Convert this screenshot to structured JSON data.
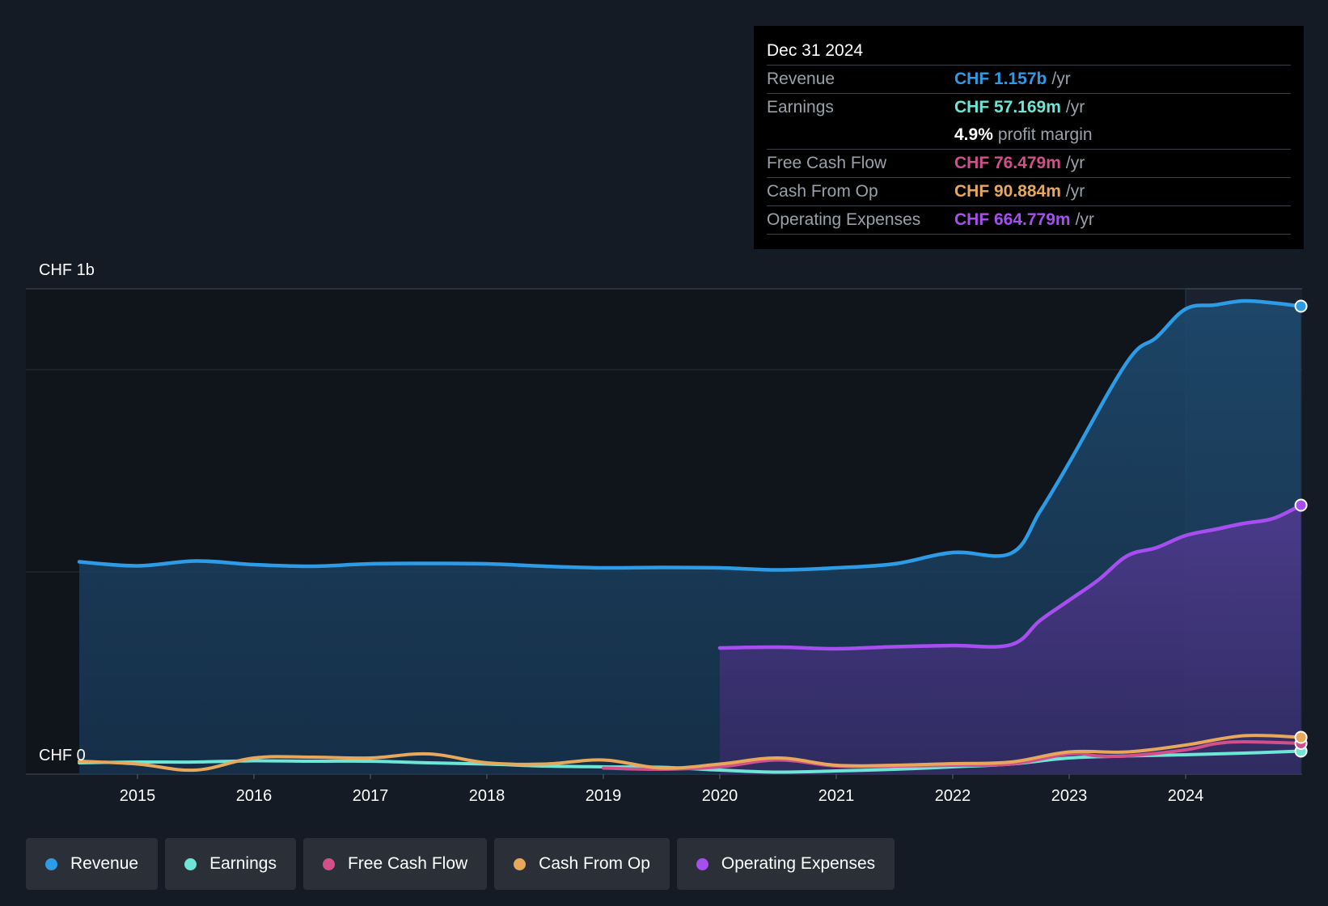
{
  "tooltip": {
    "date": "Dec 31 2024",
    "rows": [
      {
        "label": "Revenue",
        "value": "CHF 1.157b",
        "unit": "/yr",
        "color": "#2d9be6"
      },
      {
        "label": "Earnings",
        "value": "CHF 57.169m",
        "unit": "/yr",
        "color": "#6ee6d6"
      },
      {
        "label": "Free Cash Flow",
        "value": "CHF 76.479m",
        "unit": "/yr",
        "color": "#d14f8b"
      },
      {
        "label": "Cash From Op",
        "value": "CHF 90.884m",
        "unit": "/yr",
        "color": "#e8a85c"
      },
      {
        "label": "Operating Expenses",
        "value": "CHF 664.779m",
        "unit": "/yr",
        "color": "#a64ef0"
      }
    ],
    "margin": {
      "value": "4.9%",
      "label": "profit margin"
    }
  },
  "legend": [
    {
      "label": "Revenue",
      "color": "#2d9be6"
    },
    {
      "label": "Earnings",
      "color": "#6ee6d6"
    },
    {
      "label": "Free Cash Flow",
      "color": "#d14f8b"
    },
    {
      "label": "Cash From Op",
      "color": "#e8a85c"
    },
    {
      "label": "Operating Expenses",
      "color": "#a64ef0"
    }
  ],
  "chart_data": {
    "type": "area",
    "title": "",
    "ylabel_top": "CHF 1b",
    "ylabel_bottom": "CHF 0",
    "x_ticks": [
      "2015",
      "2016",
      "2017",
      "2018",
      "2019",
      "2020",
      "2021",
      "2022",
      "2023",
      "2024"
    ],
    "xlim": [
      2014.5,
      2025.0
    ],
    "ylim": [
      -0.04,
      1.2
    ],
    "highlight_from": 2024.0,
    "units": "CHF billions",
    "series": [
      {
        "name": "Revenue",
        "color": "#2d9be6",
        "fill": true,
        "end_marker": true,
        "x": [
          2014.5,
          2015.0,
          2015.5,
          2016.0,
          2016.5,
          2017.0,
          2017.5,
          2018.0,
          2018.5,
          2019.0,
          2019.5,
          2020.0,
          2020.5,
          2021.0,
          2021.5,
          2022.0,
          2022.5,
          2022.75,
          2023.0,
          2023.5,
          2023.75,
          2024.0,
          2024.25,
          2024.5,
          2024.75,
          2024.99
        ],
        "y": [
          0.525,
          0.515,
          0.527,
          0.518,
          0.514,
          0.52,
          0.521,
          0.52,
          0.514,
          0.51,
          0.511,
          0.51,
          0.505,
          0.51,
          0.52,
          0.548,
          0.546,
          0.65,
          0.77,
          1.02,
          1.08,
          1.15,
          1.16,
          1.17,
          1.165,
          1.157
        ]
      },
      {
        "name": "Operating Expenses",
        "color": "#a64ef0",
        "fill": true,
        "end_marker": true,
        "x": [
          2020.0,
          2020.5,
          2021.0,
          2021.5,
          2022.0,
          2022.5,
          2022.75,
          2023.0,
          2023.25,
          2023.5,
          2023.75,
          2024.0,
          2024.25,
          2024.5,
          2024.75,
          2024.99
        ],
        "y": [
          0.312,
          0.314,
          0.31,
          0.315,
          0.318,
          0.32,
          0.38,
          0.43,
          0.48,
          0.54,
          0.56,
          0.59,
          0.605,
          0.62,
          0.632,
          0.665
        ]
      },
      {
        "name": "Earnings",
        "color": "#6ee6d6",
        "fill": false,
        "end_marker": true,
        "x": [
          2014.5,
          2015.0,
          2015.5,
          2016.0,
          2016.5,
          2017.0,
          2017.5,
          2018.0,
          2018.5,
          2019.0,
          2019.5,
          2020.0,
          2020.5,
          2021.0,
          2021.5,
          2022.0,
          2022.5,
          2023.0,
          2023.5,
          2024.0,
          2024.5,
          2024.99
        ],
        "y": [
          0.028,
          0.03,
          0.03,
          0.033,
          0.032,
          0.032,
          0.028,
          0.025,
          0.02,
          0.018,
          0.017,
          0.01,
          0.005,
          0.008,
          0.012,
          0.018,
          0.025,
          0.04,
          0.045,
          0.048,
          0.052,
          0.057
        ]
      },
      {
        "name": "Free Cash Flow",
        "color": "#d14f8b",
        "fill": false,
        "end_marker": true,
        "x": [
          2019.0,
          2019.5,
          2020.0,
          2020.5,
          2021.0,
          2021.5,
          2022.0,
          2022.5,
          2023.0,
          2023.25,
          2023.5,
          2024.0,
          2024.25,
          2024.5,
          2024.99
        ],
        "y": [
          0.015,
          0.012,
          0.018,
          0.035,
          0.02,
          0.02,
          0.022,
          0.025,
          0.05,
          0.045,
          0.045,
          0.06,
          0.075,
          0.08,
          0.076
        ]
      },
      {
        "name": "Cash From Op",
        "color": "#e8a85c",
        "fill": false,
        "end_marker": true,
        "x": [
          2014.5,
          2015.0,
          2015.5,
          2016.0,
          2016.5,
          2017.0,
          2017.5,
          2018.0,
          2018.5,
          2019.0,
          2019.5,
          2020.0,
          2020.5,
          2021.0,
          2021.5,
          2022.0,
          2022.5,
          2023.0,
          2023.5,
          2024.0,
          2024.5,
          2024.99
        ],
        "y": [
          0.032,
          0.025,
          0.01,
          0.04,
          0.042,
          0.04,
          0.05,
          0.028,
          0.025,
          0.035,
          0.015,
          0.025,
          0.04,
          0.022,
          0.022,
          0.026,
          0.03,
          0.055,
          0.055,
          0.072,
          0.095,
          0.091
        ]
      }
    ]
  }
}
